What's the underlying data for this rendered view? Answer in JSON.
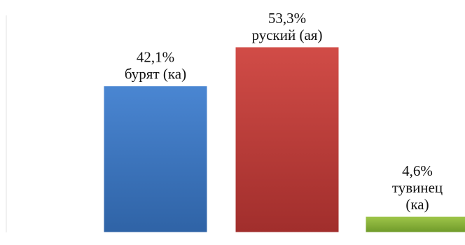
{
  "chart_data": {
    "type": "bar",
    "title": "",
    "xlabel": "",
    "ylabel": "",
    "grid": false,
    "legend": "none",
    "ylim": [
      0,
      60
    ],
    "bars": [
      {
        "value": 42.1,
        "value_label": "42,1%",
        "category_lines": [
          "бурят (ка)"
        ],
        "color_light": "#4a86d2",
        "color_dark": "#2f63a6"
      },
      {
        "value": 53.3,
        "value_label": "53,3%",
        "category_lines": [
          "руский (ая)"
        ],
        "color_light": "#d14c47",
        "color_dark": "#a12e2c"
      },
      {
        "value": 4.6,
        "value_label": "4,6%",
        "category_lines": [
          "тувинец",
          "(ка)"
        ],
        "color_light": "#9fc64a",
        "color_dark": "#6f9a2a"
      }
    ]
  }
}
